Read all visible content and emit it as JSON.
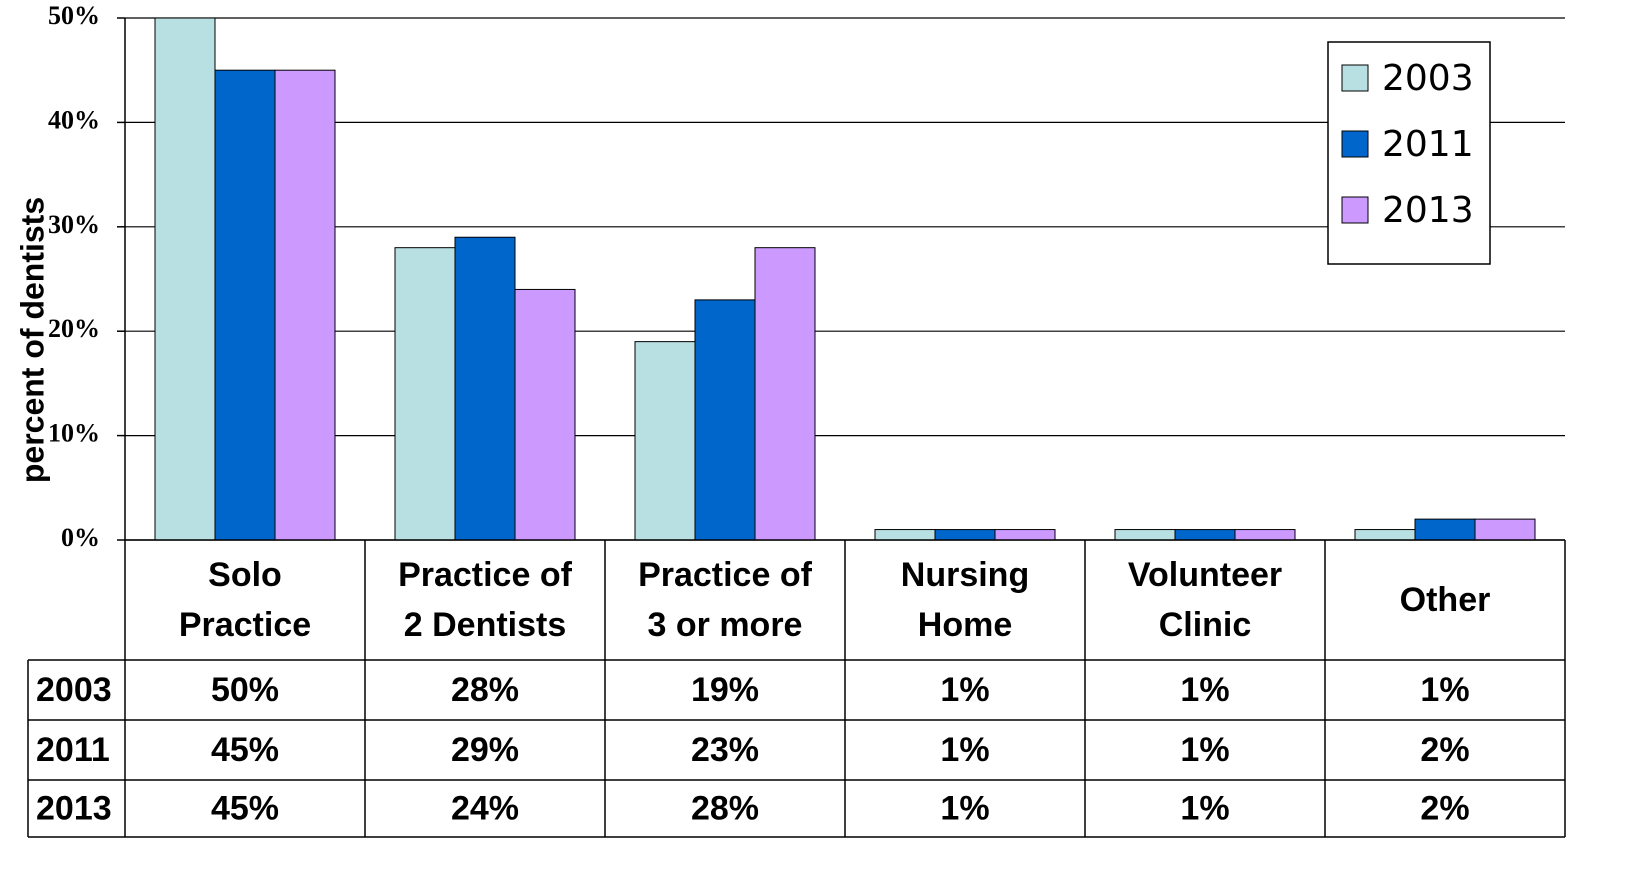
{
  "chart_data": {
    "type": "bar",
    "y_label": "percent of dentists",
    "categories": [
      "Solo Practice",
      "Practice of 2 Dentists",
      "Practice of 3 or more",
      "Nursing Home",
      "Volunteer Clinic",
      "Other"
    ],
    "series": [
      {
        "name": "2003",
        "color": "#b8e0e2",
        "values": [
          50,
          28,
          19,
          1,
          1,
          1
        ],
        "value_labels": [
          "50%",
          "28%",
          "19%",
          "1%",
          "1%",
          "1%"
        ]
      },
      {
        "name": "2011",
        "color": "#0066cc",
        "values": [
          45,
          29,
          23,
          1,
          1,
          2
        ],
        "value_labels": [
          "45%",
          "29%",
          "23%",
          "1%",
          "1%",
          "2%"
        ]
      },
      {
        "name": "2013",
        "color": "#cc99ff",
        "values": [
          45,
          24,
          28,
          1,
          1,
          2
        ],
        "value_labels": [
          "45%",
          "24%",
          "28%",
          "1%",
          "1%",
          "2%"
        ]
      }
    ],
    "ylim": [
      0,
      50
    ],
    "yticks": [
      {
        "value": 0,
        "label": "0%"
      },
      {
        "value": 10,
        "label": "10%"
      },
      {
        "value": 20,
        "label": "20%"
      },
      {
        "value": 30,
        "label": "30%"
      },
      {
        "value": 40,
        "label": "40%"
      },
      {
        "value": 50,
        "label": "50%"
      }
    ],
    "grid": true,
    "legend": "top-right",
    "data_table": true
  }
}
